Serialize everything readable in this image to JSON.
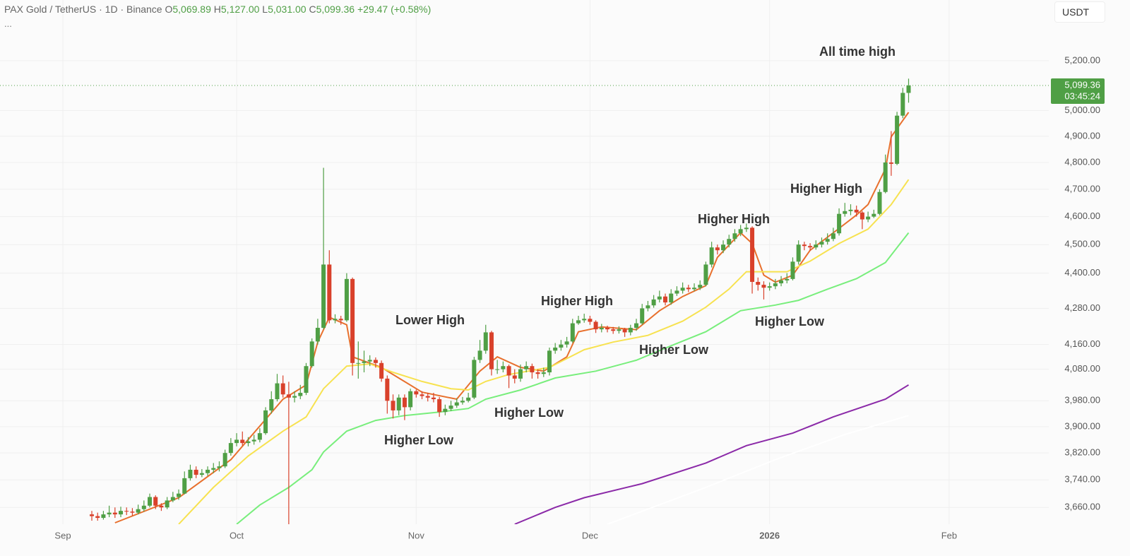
{
  "chart_data": {
    "type": "candlestick",
    "header": {
      "symbol": "PAX Gold / TetherUS · 1D · Binance",
      "more": "...",
      "fields": [
        {
          "label": "O",
          "value": "5,069.89"
        },
        {
          "label": "H",
          "value": "5,127.00"
        },
        {
          "label": "L",
          "value": "5,031.00"
        },
        {
          "label": "C",
          "value": "5,099.36"
        }
      ],
      "change": "+29.47 (+0.58%)"
    },
    "currency": "USDT",
    "last_price": {
      "value": 5099.36,
      "label": "5,099.36"
    },
    "countdown": "03:45:24",
    "log_scale": true,
    "grid": true,
    "up_color": "#4f9f45",
    "down_color": "#d9412b",
    "ylim": [
      3612,
      5454
    ],
    "yticks": [
      {
        "value": 3660,
        "label": "3,660.00"
      },
      {
        "value": 3740,
        "label": "3,740.00"
      },
      {
        "value": 3820,
        "label": "3,820.00"
      },
      {
        "value": 3900,
        "label": "3,900.00"
      },
      {
        "value": 3980,
        "label": "3,980.00"
      },
      {
        "value": 4080,
        "label": "4,080.00"
      },
      {
        "value": 4160,
        "label": "4,160.00"
      },
      {
        "value": 4280,
        "label": "4,280.00"
      },
      {
        "value": 4400,
        "label": "4,400.00"
      },
      {
        "value": 4500,
        "label": "4,500.00"
      },
      {
        "value": 4600,
        "label": "4,600.00"
      },
      {
        "value": 4700,
        "label": "4,700.00"
      },
      {
        "value": 4800,
        "label": "4,800.00"
      },
      {
        "value": 4900,
        "label": "4,900.00"
      },
      {
        "value": 5000,
        "label": "5,000.00"
      },
      {
        "value": 5200,
        "label": "5,200.00"
      }
    ],
    "xlim": [
      -15.85,
      165.2
    ],
    "xticks": [
      {
        "value": -5,
        "label": "Sep"
      },
      {
        "value": 25,
        "label": "Oct"
      },
      {
        "value": 56,
        "label": "Nov"
      },
      {
        "value": 86,
        "label": "Dec"
      },
      {
        "value": 117,
        "label": "2026"
      },
      {
        "value": 148,
        "label": "Feb"
      }
    ],
    "candles": [
      [
        3640,
        3650,
        3622,
        3635
      ],
      [
        3635,
        3645,
        3622,
        3630
      ],
      [
        3630,
        3650,
        3625,
        3640
      ],
      [
        3640,
        3665,
        3632,
        3645
      ],
      [
        3645,
        3660,
        3630,
        3640
      ],
      [
        3640,
        3662,
        3632,
        3650
      ],
      [
        3650,
        3660,
        3638,
        3648
      ],
      [
        3648,
        3658,
        3636,
        3645
      ],
      [
        3645,
        3668,
        3640,
        3655
      ],
      [
        3655,
        3680,
        3648,
        3665
      ],
      [
        3665,
        3700,
        3660,
        3690
      ],
      [
        3690,
        3695,
        3655,
        3665
      ],
      [
        3665,
        3672,
        3650,
        3660
      ],
      [
        3660,
        3690,
        3655,
        3680
      ],
      [
        3680,
        3705,
        3675,
        3690
      ],
      [
        3690,
        3712,
        3682,
        3700
      ],
      [
        3700,
        3765,
        3698,
        3745
      ],
      [
        3745,
        3785,
        3738,
        3770
      ],
      [
        3770,
        3780,
        3745,
        3755
      ],
      [
        3755,
        3772,
        3748,
        3760
      ],
      [
        3760,
        3780,
        3752,
        3770
      ],
      [
        3770,
        3790,
        3760,
        3775
      ],
      [
        3775,
        3795,
        3765,
        3780
      ],
      [
        3780,
        3830,
        3775,
        3820
      ],
      [
        3820,
        3865,
        3812,
        3850
      ],
      [
        3850,
        3880,
        3840,
        3860
      ],
      [
        3860,
        3885,
        3842,
        3850
      ],
      [
        3850,
        3868,
        3840,
        3855
      ],
      [
        3855,
        3875,
        3845,
        3860
      ],
      [
        3860,
        3895,
        3852,
        3880
      ],
      [
        3880,
        3960,
        3875,
        3950
      ],
      [
        3950,
        4010,
        3940,
        3985
      ],
      [
        3985,
        4065,
        3978,
        4035
      ],
      [
        4035,
        4060,
        3990,
        4000
      ],
      [
        4000,
        4040,
        3600,
        3990
      ],
      [
        3990,
        4010,
        3975,
        3995
      ],
      [
        3995,
        4030,
        3985,
        4005
      ],
      [
        4005,
        4100,
        3998,
        4090
      ],
      [
        4090,
        4180,
        4085,
        4170
      ],
      [
        4170,
        4245,
        4160,
        4215
      ],
      [
        4215,
        4780,
        4210,
        4430
      ],
      [
        4430,
        4480,
        4230,
        4240
      ],
      [
        4240,
        4260,
        4230,
        4245
      ],
      [
        4245,
        4255,
        4225,
        4240
      ],
      [
        4240,
        4400,
        4235,
        4380
      ],
      [
        4380,
        4385,
        4060,
        4100
      ],
      [
        4100,
        4170,
        4050,
        4100
      ],
      [
        4100,
        4140,
        4070,
        4105
      ],
      [
        4105,
        4125,
        4090,
        4110
      ],
      [
        4110,
        4118,
        4085,
        4100
      ],
      [
        4100,
        4108,
        4040,
        4050
      ],
      [
        4050,
        4060,
        3940,
        3980
      ],
      [
        3980,
        4000,
        3925,
        3950
      ],
      [
        3950,
        4000,
        3935,
        3990
      ],
      [
        3990,
        4000,
        3920,
        3960
      ],
      [
        3960,
        4018,
        3950,
        4010
      ],
      [
        4010,
        4015,
        3990,
        4000
      ],
      [
        4000,
        4010,
        3985,
        3995
      ],
      [
        3995,
        4005,
        3978,
        3990
      ],
      [
        3990,
        4005,
        3975,
        3985
      ],
      [
        3985,
        3992,
        3930,
        3945
      ],
      [
        3945,
        3968,
        3935,
        3955
      ],
      [
        3955,
        3980,
        3948,
        3965
      ],
      [
        3965,
        3988,
        3958,
        3975
      ],
      [
        3975,
        3992,
        3968,
        3980
      ],
      [
        3980,
        4005,
        3975,
        3990
      ],
      [
        3990,
        4120,
        3985,
        4110
      ],
      [
        4110,
        4175,
        4100,
        4140
      ],
      [
        4140,
        4225,
        4130,
        4200
      ],
      [
        4200,
        4205,
        4060,
        4080
      ],
      [
        4080,
        4110,
        4065,
        4080
      ],
      [
        4080,
        4105,
        4070,
        4090
      ],
      [
        4090,
        4095,
        4020,
        4060
      ],
      [
        4060,
        4080,
        4035,
        4050
      ],
      [
        4050,
        4095,
        4040,
        4080
      ],
      [
        4080,
        4105,
        4070,
        4090
      ],
      [
        4090,
        4098,
        4050,
        4070
      ],
      [
        4070,
        4080,
        4050,
        4065
      ],
      [
        4065,
        4085,
        4055,
        4070
      ],
      [
        4070,
        4150,
        4060,
        4140
      ],
      [
        4140,
        4165,
        4130,
        4150
      ],
      [
        4150,
        4175,
        4140,
        4160
      ],
      [
        4160,
        4185,
        4150,
        4170
      ],
      [
        4170,
        4245,
        4165,
        4230
      ],
      [
        4230,
        4255,
        4225,
        4240
      ],
      [
        4240,
        4262,
        4232,
        4245
      ],
      [
        4245,
        4255,
        4225,
        4235
      ],
      [
        4235,
        4240,
        4198,
        4210
      ],
      [
        4210,
        4228,
        4200,
        4215
      ],
      [
        4215,
        4222,
        4200,
        4210
      ],
      [
        4210,
        4218,
        4195,
        4205
      ],
      [
        4205,
        4220,
        4196,
        4210
      ],
      [
        4210,
        4215,
        4185,
        4200
      ],
      [
        4200,
        4225,
        4190,
        4215
      ],
      [
        4215,
        4245,
        4205,
        4230
      ],
      [
        4230,
        4295,
        4225,
        4280
      ],
      [
        4280,
        4305,
        4270,
        4290
      ],
      [
        4290,
        4325,
        4282,
        4310
      ],
      [
        4310,
        4340,
        4300,
        4320
      ],
      [
        4320,
        4330,
        4290,
        4300
      ],
      [
        4300,
        4345,
        4292,
        4330
      ],
      [
        4330,
        4355,
        4322,
        4340
      ],
      [
        4340,
        4368,
        4330,
        4350
      ],
      [
        4350,
        4360,
        4335,
        4345
      ],
      [
        4345,
        4365,
        4338,
        4350
      ],
      [
        4350,
        4375,
        4342,
        4360
      ],
      [
        4360,
        4440,
        4355,
        4430
      ],
      [
        4430,
        4510,
        4420,
        4490
      ],
      [
        4490,
        4500,
        4465,
        4480
      ],
      [
        4480,
        4515,
        4470,
        4500
      ],
      [
        4500,
        4535,
        4490,
        4520
      ],
      [
        4520,
        4555,
        4510,
        4540
      ],
      [
        4540,
        4570,
        4530,
        4555
      ],
      [
        4555,
        4575,
        4545,
        4560
      ],
      [
        4560,
        4565,
        4330,
        4370
      ],
      [
        4370,
        4385,
        4340,
        4360
      ],
      [
        4360,
        4372,
        4310,
        4350
      ],
      [
        4350,
        4368,
        4340,
        4355
      ],
      [
        4355,
        4380,
        4345,
        4365
      ],
      [
        4365,
        4390,
        4355,
        4375
      ],
      [
        4375,
        4400,
        4365,
        4380
      ],
      [
        4380,
        4455,
        4375,
        4440
      ],
      [
        4440,
        4515,
        4430,
        4500
      ],
      [
        4500,
        4510,
        4480,
        4495
      ],
      [
        4495,
        4505,
        4478,
        4490
      ],
      [
        4490,
        4515,
        4482,
        4500
      ],
      [
        4500,
        4525,
        4490,
        4510
      ],
      [
        4510,
        4540,
        4500,
        4520
      ],
      [
        4520,
        4560,
        4512,
        4540
      ],
      [
        4540,
        4630,
        4532,
        4610
      ],
      [
        4610,
        4650,
        4600,
        4620
      ],
      [
        4620,
        4645,
        4605,
        4625
      ],
      [
        4625,
        4640,
        4600,
        4615
      ],
      [
        4615,
        4620,
        4555,
        4590
      ],
      [
        4590,
        4618,
        4580,
        4600
      ],
      [
        4600,
        4625,
        4595,
        4610
      ],
      [
        4610,
        4700,
        4605,
        4690
      ],
      [
        4690,
        4830,
        4685,
        4800
      ],
      [
        4800,
        4920,
        4750,
        4795
      ],
      [
        4795,
        4995,
        4790,
        4980
      ],
      [
        4980,
        5090,
        4970,
        5069.89
      ],
      [
        5069.89,
        5127,
        5031,
        5099.36
      ]
    ],
    "series": [
      {
        "color": "#e8702d",
        "x": [
          4,
          15,
          24,
          33,
          37,
          39,
          41,
          44,
          45,
          50,
          52,
          57,
          63,
          67,
          70,
          74,
          78,
          82,
          84,
          88,
          94,
          98,
          102,
          106,
          108,
          112,
          114,
          116,
          118,
          121,
          124,
          128,
          132,
          134,
          137,
          138,
          141
        ],
        "values": [
          3616,
          3688,
          3800,
          3985,
          4030,
          4168,
          4250,
          4225,
          4120,
          4086,
          4063,
          4007,
          3985,
          4074,
          4120,
          4086,
          4074,
          4120,
          4202,
          4218,
          4209,
          4272,
          4320,
          4357,
          4455,
          4542,
          4504,
          4393,
          4369,
          4393,
          4480,
          4542,
          4606,
          4644,
          4776,
          4898,
          4993
        ]
      },
      {
        "color": "#f7e250",
        "x": [
          15,
          21,
          27,
          33,
          37,
          40,
          44,
          48,
          52,
          57,
          62,
          65,
          68,
          72,
          79,
          85,
          90,
          96,
          102,
          106,
          110,
          113,
          116,
          120,
          124,
          129,
          134,
          138,
          141
        ],
        "values": [
          3612,
          3718,
          3811,
          3886,
          3930,
          4018,
          4090,
          4097,
          4070,
          4041,
          4018,
          4014,
          4041,
          4063,
          4086,
          4143,
          4168,
          4190,
          4237,
          4284,
          4345,
          4405,
          4405,
          4405,
          4442,
          4504,
          4555,
          4644,
          4736
        ]
      },
      {
        "color": "#78ee7c",
        "x": [
          25,
          29,
          34,
          38,
          40,
          44,
          49,
          54,
          60,
          65,
          68,
          74,
          80,
          87,
          94,
          100,
          106,
          112,
          118,
          122,
          127,
          132,
          137,
          141
        ],
        "values": [
          3612,
          3667,
          3718,
          3770,
          3823,
          3886,
          3919,
          3934,
          3945,
          3956,
          3985,
          4014,
          4052,
          4074,
          4109,
          4156,
          4202,
          4272,
          4291,
          4307,
          4345,
          4381,
          4437,
          4542
        ]
      },
      {
        "color": "#8b2aa8",
        "x": [
          73,
          80,
          85,
          95,
          106,
          113,
          121,
          128,
          137,
          141
        ],
        "values": [
          3612,
          3660,
          3688,
          3729,
          3790,
          3842,
          3880,
          3930,
          3985,
          4030
        ]
      },
      {
        "color": "#ffffff",
        "x": [
          89,
          106,
          118,
          130,
          141
        ],
        "values": [
          3612,
          3718,
          3800,
          3876,
          3934
        ]
      }
    ],
    "annotations": [
      "All time high",
      "Higher High",
      "Higher High",
      "Higher High",
      "Lower High",
      "Higher Low",
      "Higher Low",
      "Higher Low",
      "Higher Low"
    ]
  }
}
